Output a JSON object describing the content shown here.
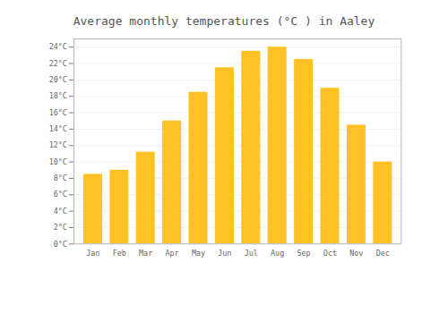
{
  "chart_data": {
    "type": "bar",
    "title": "Average monthly temperatures (°C ) in Aaley",
    "categories": [
      "Jan",
      "Feb",
      "Mar",
      "Apr",
      "May",
      "Jun",
      "Jul",
      "Aug",
      "Sep",
      "Oct",
      "Nov",
      "Dec"
    ],
    "values": [
      8.5,
      9.0,
      11.2,
      15.0,
      18.5,
      21.5,
      23.5,
      24.0,
      22.5,
      19.0,
      14.5,
      10.0
    ],
    "color": "#FFC125",
    "ylim": [
      0,
      25
    ],
    "yticks": [
      {
        "value": 0,
        "label": "0°C"
      },
      {
        "value": 2,
        "label": "2°C"
      },
      {
        "value": 4,
        "label": "4°C"
      },
      {
        "value": 6,
        "label": "6°C"
      },
      {
        "value": 8,
        "label": "8°C"
      },
      {
        "value": 10,
        "label": "10°C"
      },
      {
        "value": 12,
        "label": "12°C"
      },
      {
        "value": 14,
        "label": "14°C"
      },
      {
        "value": 16,
        "label": "16°C"
      },
      {
        "value": 18,
        "label": "18°C"
      },
      {
        "value": 20,
        "label": "20°C"
      },
      {
        "value": 22,
        "label": "22°C"
      },
      {
        "value": 24,
        "label": "24°C"
      }
    ],
    "grid": true
  }
}
